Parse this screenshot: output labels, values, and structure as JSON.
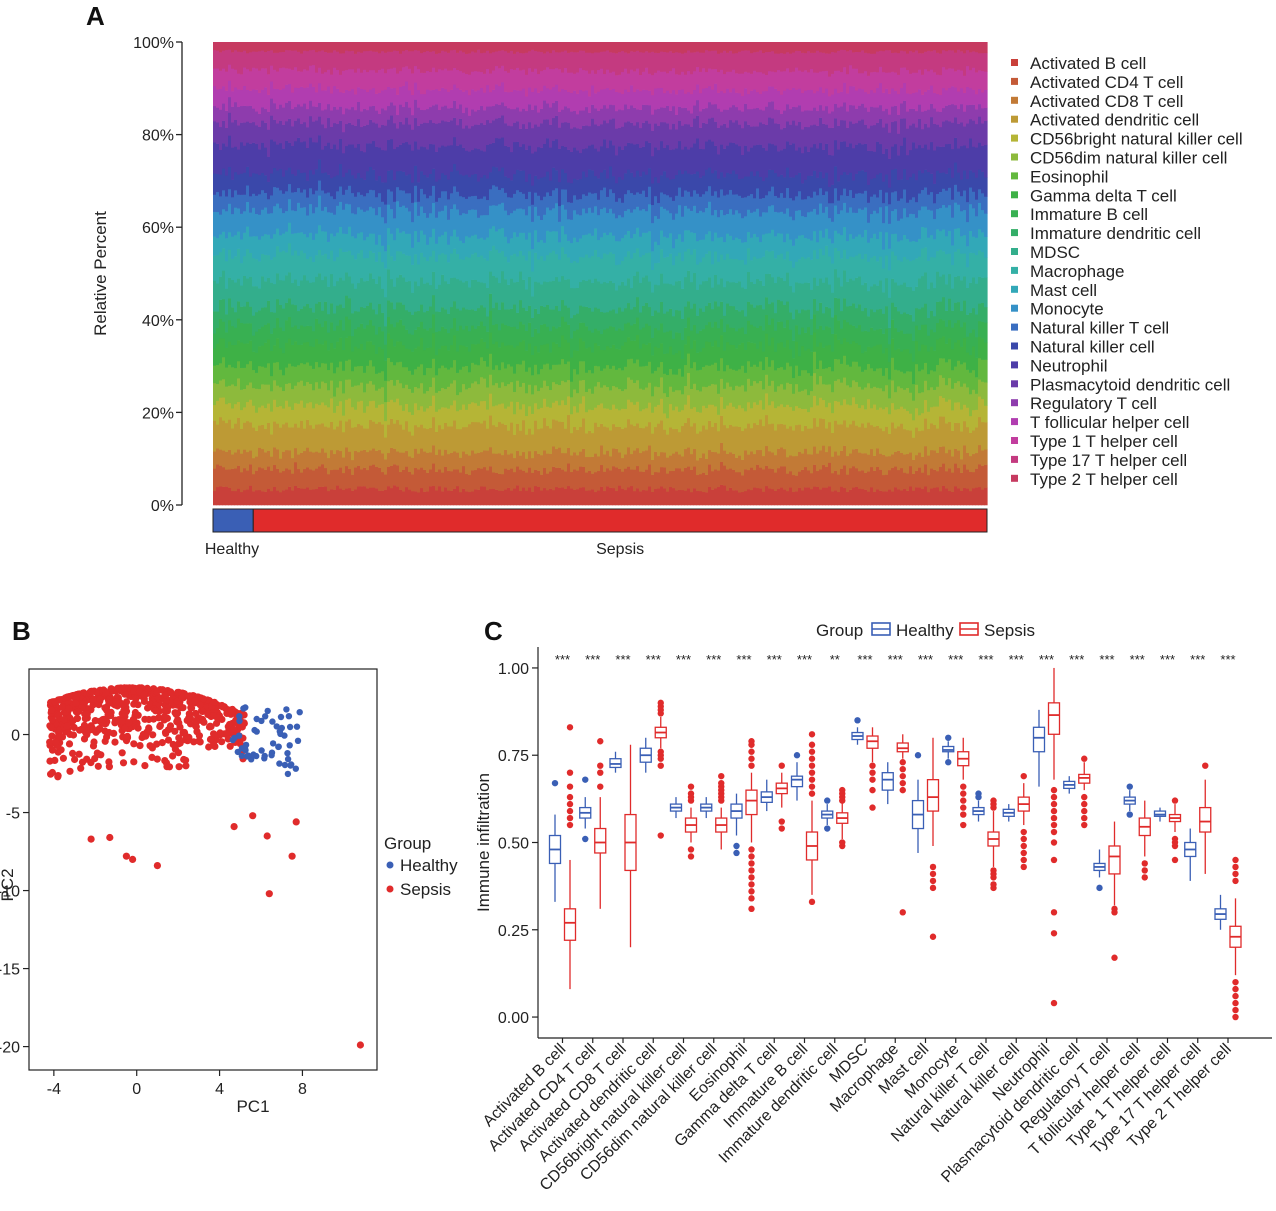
{
  "panels": {
    "a": {
      "letter": "A"
    },
    "b": {
      "letter": "B"
    },
    "c": {
      "letter": "C"
    }
  },
  "colors": {
    "healthy": "#3A5FB5",
    "sepsis": "#E02B2B"
  },
  "chart_data": [
    {
      "id": "A",
      "type": "area",
      "subtype": "100% stacked bar per sample",
      "ylabel": "Relative Percent",
      "yticks": [
        "0%",
        "20%",
        "40%",
        "60%",
        "80%",
        "100%"
      ],
      "ylim": [
        0,
        100
      ],
      "groups": [
        {
          "name": "Healthy",
          "fraction_of_samples": 0.052
        },
        {
          "name": "Sepsis",
          "fraction_of_samples": 0.948
        }
      ],
      "legend_position": "right",
      "cell_types": [
        {
          "name": "Activated B cell",
          "color": "#C9403A",
          "mean_pct": 2.9
        },
        {
          "name": "Activated CD4 T cell",
          "color": "#C45A37",
          "mean_pct": 3.5
        },
        {
          "name": "Activated CD8 T cell",
          "color": "#C27A36",
          "mean_pct": 3.0
        },
        {
          "name": "Activated dendritic cell",
          "color": "#BD9A35",
          "mean_pct": 4.8
        },
        {
          "name": "CD56bright natural killer cell",
          "color": "#B5B536",
          "mean_pct": 3.5
        },
        {
          "name": "CD56dim natural killer cell",
          "color": "#8DBA3C",
          "mean_pct": 3.5
        },
        {
          "name": "Eosinophil",
          "color": "#62B83E",
          "mean_pct": 3.4
        },
        {
          "name": "Gamma delta T cell",
          "color": "#3EB146",
          "mean_pct": 3.8
        },
        {
          "name": "Immature  B cell",
          "color": "#38B052",
          "mean_pct": 3.3
        },
        {
          "name": "Immature dendritic cell",
          "color": "#34AE68",
          "mean_pct": 3.4
        },
        {
          "name": "MDSC",
          "color": "#33AE8C",
          "mean_pct": 4.7
        },
        {
          "name": "Macrophage",
          "color": "#34B0A6",
          "mean_pct": 4.5
        },
        {
          "name": "Mast cell",
          "color": "#32A8B8",
          "mean_pct": 3.6
        },
        {
          "name": "Monocyte",
          "color": "#3591C7",
          "mean_pct": 4.4
        },
        {
          "name": "Natural killer T cell",
          "color": "#3A6EC0",
          "mean_pct": 3.0
        },
        {
          "name": "Natural killer cell",
          "color": "#3A48AA",
          "mean_pct": 3.5
        },
        {
          "name": "Neutrophil",
          "color": "#4D3DA8",
          "mean_pct": 5.1
        },
        {
          "name": "Plasmacytoid dendritic cell",
          "color": "#6B3BA9",
          "mean_pct": 4.0
        },
        {
          "name": "Regulatory T cell",
          "color": "#8E3CAD",
          "mean_pct": 2.8
        },
        {
          "name": "T follicular helper cell",
          "color": "#B13DB0",
          "mean_pct": 3.2
        },
        {
          "name": "Type 1 T helper cell",
          "color": "#C23D9E",
          "mean_pct": 3.4
        },
        {
          "name": "Type 17 T helper cell",
          "color": "#C43A80",
          "mean_pct": 3.4
        },
        {
          "name": "Type 2 T helper cell",
          "color": "#C63A60",
          "mean_pct": 1.7
        }
      ]
    },
    {
      "id": "B",
      "type": "scatter",
      "xlabel": "PC1",
      "ylabel": "PC2",
      "xlim": [
        -5.2,
        11.6
      ],
      "ylim": [
        -21.5,
        4.2
      ],
      "xticks": [
        -4,
        0,
        4,
        8
      ],
      "yticks": [
        0,
        -5,
        -10,
        -15,
        -20
      ],
      "legend_title": "Group",
      "legend_position": "right",
      "series": [
        {
          "name": "Healthy",
          "n_points": 55,
          "x_mean": 6.0,
          "y_mean": -0.9
        },
        {
          "name": "Sepsis",
          "n_points": 620,
          "x_mean": 0.0,
          "y_mean": -0.8
        }
      ],
      "outliers": [
        {
          "group": "Sepsis",
          "x": 10.8,
          "y": -19.9
        },
        {
          "group": "Sepsis",
          "x": 6.4,
          "y": -10.2
        },
        {
          "group": "Sepsis",
          "x": 7.5,
          "y": -7.8
        },
        {
          "group": "Sepsis",
          "x": 7.7,
          "y": -5.6
        },
        {
          "group": "Sepsis",
          "x": 6.3,
          "y": -6.5
        },
        {
          "group": "Sepsis",
          "x": 5.6,
          "y": -5.2
        },
        {
          "group": "Sepsis",
          "x": 4.7,
          "y": -5.9
        },
        {
          "group": "Sepsis",
          "x": 1.0,
          "y": -8.4
        },
        {
          "group": "Sepsis",
          "x": -0.2,
          "y": -8.0
        },
        {
          "group": "Sepsis",
          "x": -0.5,
          "y": -7.8
        },
        {
          "group": "Sepsis",
          "x": -1.3,
          "y": -6.6
        },
        {
          "group": "Sepsis",
          "x": -2.2,
          "y": -6.7
        }
      ]
    },
    {
      "id": "C",
      "type": "box",
      "ylabel": "Immune infiltration",
      "ylim": [
        -0.06,
        1.06
      ],
      "yticks": [
        "0.00",
        "0.25",
        "0.50",
        "0.75",
        "1.00"
      ],
      "legend_title": "Group",
      "legend_entries": [
        "Healthy",
        "Sepsis"
      ],
      "legend_position": "top",
      "categories": [
        {
          "name": "Activated B cell",
          "sig": "***",
          "healthy": {
            "q1": 0.44,
            "med": 0.48,
            "q3": 0.52,
            "lo": 0.33,
            "hi": 0.58,
            "out": [
              0.67
            ]
          },
          "sepsis": {
            "q1": 0.22,
            "med": 0.27,
            "q3": 0.31,
            "lo": 0.08,
            "hi": 0.45,
            "out": [
              0.55,
              0.57,
              0.59,
              0.61,
              0.63,
              0.66,
              0.7,
              0.83
            ]
          }
        },
        {
          "name": "Activated CD4 T cell",
          "sig": "***",
          "healthy": {
            "q1": 0.57,
            "med": 0.585,
            "q3": 0.6,
            "lo": 0.54,
            "hi": 0.63,
            "out": [
              0.51,
              0.68
            ]
          },
          "sepsis": {
            "q1": 0.47,
            "med": 0.5,
            "q3": 0.54,
            "lo": 0.31,
            "hi": 0.63,
            "out": [
              0.66,
              0.7,
              0.72,
              0.79
            ]
          }
        },
        {
          "name": "Activated CD8 T cell",
          "sig": "***",
          "healthy": {
            "q1": 0.715,
            "med": 0.725,
            "q3": 0.74,
            "lo": 0.7,
            "hi": 0.76,
            "out": []
          },
          "sepsis": {
            "q1": 0.42,
            "med": 0.5,
            "q3": 0.58,
            "lo": 0.2,
            "hi": 0.78,
            "out": []
          }
        },
        {
          "name": "Activated dendritic cell",
          "sig": "***",
          "healthy": {
            "q1": 0.73,
            "med": 0.75,
            "q3": 0.77,
            "lo": 0.7,
            "hi": 0.8,
            "out": []
          },
          "sepsis": {
            "q1": 0.8,
            "med": 0.815,
            "q3": 0.83,
            "lo": 0.77,
            "hi": 0.86,
            "out": [
              0.52,
              0.72,
              0.74,
              0.75,
              0.76,
              0.87,
              0.88,
              0.89,
              0.9
            ]
          }
        },
        {
          "name": "CD56bright natural killer cell",
          "sig": "***",
          "healthy": {
            "q1": 0.59,
            "med": 0.6,
            "q3": 0.61,
            "lo": 0.57,
            "hi": 0.63,
            "out": []
          },
          "sepsis": {
            "q1": 0.53,
            "med": 0.55,
            "q3": 0.57,
            "lo": 0.5,
            "hi": 0.6,
            "out": [
              0.46,
              0.48,
              0.62,
              0.63,
              0.64,
              0.66
            ]
          }
        },
        {
          "name": "CD56dim natural killer cell",
          "sig": "***",
          "healthy": {
            "q1": 0.59,
            "med": 0.6,
            "q3": 0.61,
            "lo": 0.57,
            "hi": 0.63,
            "out": []
          },
          "sepsis": {
            "q1": 0.53,
            "med": 0.55,
            "q3": 0.57,
            "lo": 0.48,
            "hi": 0.6,
            "out": [
              0.62,
              0.63,
              0.64,
              0.65,
              0.66,
              0.67,
              0.69
            ]
          }
        },
        {
          "name": "Eosinophil",
          "sig": "***",
          "healthy": {
            "q1": 0.57,
            "med": 0.59,
            "q3": 0.61,
            "lo": 0.52,
            "hi": 0.64,
            "out": [
              0.47,
              0.49
            ]
          },
          "sepsis": {
            "q1": 0.58,
            "med": 0.62,
            "q3": 0.65,
            "lo": 0.5,
            "hi": 0.7,
            "out": [
              0.31,
              0.34,
              0.36,
              0.38,
              0.4,
              0.42,
              0.44,
              0.46,
              0.48,
              0.72,
              0.74,
              0.76,
              0.78,
              0.79
            ]
          }
        },
        {
          "name": "Gamma delta T cell",
          "sig": "***",
          "healthy": {
            "q1": 0.615,
            "med": 0.63,
            "q3": 0.645,
            "lo": 0.59,
            "hi": 0.68,
            "out": []
          },
          "sepsis": {
            "q1": 0.64,
            "med": 0.655,
            "q3": 0.67,
            "lo": 0.6,
            "hi": 0.7,
            "out": [
              0.54,
              0.56,
              0.72
            ]
          }
        },
        {
          "name": "Immature  B cell",
          "sig": "***",
          "healthy": {
            "q1": 0.66,
            "med": 0.68,
            "q3": 0.69,
            "lo": 0.62,
            "hi": 0.73,
            "out": [
              0.75
            ]
          },
          "sepsis": {
            "q1": 0.45,
            "med": 0.49,
            "q3": 0.53,
            "lo": 0.35,
            "hi": 0.62,
            "out": [
              0.33,
              0.64,
              0.66,
              0.68,
              0.7,
              0.72,
              0.74,
              0.76,
              0.78,
              0.81
            ]
          }
        },
        {
          "name": "Immature dendritic cell",
          "sig": "**",
          "healthy": {
            "q1": 0.57,
            "med": 0.58,
            "q3": 0.59,
            "lo": 0.55,
            "hi": 0.61,
            "out": [
              0.54,
              0.62
            ]
          },
          "sepsis": {
            "q1": 0.555,
            "med": 0.57,
            "q3": 0.585,
            "lo": 0.51,
            "hi": 0.62,
            "out": [
              0.49,
              0.5,
              0.62,
              0.63,
              0.64,
              0.65
            ]
          }
        },
        {
          "name": "MDSC",
          "sig": "***",
          "healthy": {
            "q1": 0.795,
            "med": 0.805,
            "q3": 0.815,
            "lo": 0.78,
            "hi": 0.83,
            "out": [
              0.85
            ]
          },
          "sepsis": {
            "q1": 0.77,
            "med": 0.79,
            "q3": 0.805,
            "lo": 0.73,
            "hi": 0.83,
            "out": [
              0.6,
              0.65,
              0.68,
              0.7,
              0.72
            ]
          }
        },
        {
          "name": "Macrophage",
          "sig": "***",
          "healthy": {
            "q1": 0.65,
            "med": 0.68,
            "q3": 0.7,
            "lo": 0.61,
            "hi": 0.73,
            "out": []
          },
          "sepsis": {
            "q1": 0.76,
            "med": 0.77,
            "q3": 0.785,
            "lo": 0.74,
            "hi": 0.81,
            "out": [
              0.3,
              0.65,
              0.67,
              0.69,
              0.71,
              0.73
            ]
          }
        },
        {
          "name": "Mast cell",
          "sig": "***",
          "healthy": {
            "q1": 0.54,
            "med": 0.58,
            "q3": 0.62,
            "lo": 0.47,
            "hi": 0.68,
            "out": [
              0.75
            ]
          },
          "sepsis": {
            "q1": 0.59,
            "med": 0.63,
            "q3": 0.68,
            "lo": 0.49,
            "hi": 0.8,
            "out": [
              0.23,
              0.37,
              0.39,
              0.41,
              0.43
            ]
          }
        },
        {
          "name": "Monocyte",
          "sig": "***",
          "healthy": {
            "q1": 0.76,
            "med": 0.765,
            "q3": 0.775,
            "lo": 0.74,
            "hi": 0.79,
            "out": [
              0.73,
              0.8
            ]
          },
          "sepsis": {
            "q1": 0.72,
            "med": 0.74,
            "q3": 0.76,
            "lo": 0.68,
            "hi": 0.8,
            "out": [
              0.55,
              0.58,
              0.6,
              0.62,
              0.64,
              0.66
            ]
          }
        },
        {
          "name": "Natural killer T cell",
          "sig": "***",
          "healthy": {
            "q1": 0.58,
            "med": 0.59,
            "q3": 0.6,
            "lo": 0.56,
            "hi": 0.62,
            "out": [
              0.63,
              0.64
            ]
          },
          "sepsis": {
            "q1": 0.49,
            "med": 0.51,
            "q3": 0.53,
            "lo": 0.43,
            "hi": 0.59,
            "out": [
              0.37,
              0.38,
              0.4,
              0.41,
              0.42,
              0.6,
              0.61,
              0.62
            ]
          }
        },
        {
          "name": "Natural killer cell",
          "sig": "***",
          "healthy": {
            "q1": 0.575,
            "med": 0.585,
            "q3": 0.595,
            "lo": 0.56,
            "hi": 0.61,
            "out": []
          },
          "sepsis": {
            "q1": 0.59,
            "med": 0.61,
            "q3": 0.63,
            "lo": 0.55,
            "hi": 0.67,
            "out": [
              0.43,
              0.45,
              0.47,
              0.49,
              0.51,
              0.53,
              0.69
            ]
          }
        },
        {
          "name": "Neutrophil",
          "sig": "***",
          "healthy": {
            "q1": 0.76,
            "med": 0.8,
            "q3": 0.83,
            "lo": 0.66,
            "hi": 0.88,
            "out": []
          },
          "sepsis": {
            "q1": 0.81,
            "med": 0.865,
            "q3": 0.9,
            "lo": 0.68,
            "hi": 1.0,
            "out": [
              0.04,
              0.24,
              0.3,
              0.45,
              0.5,
              0.53,
              0.55,
              0.57,
              0.59,
              0.61,
              0.63,
              0.65
            ]
          }
        },
        {
          "name": "Plasmacytoid dendritic cell",
          "sig": "***",
          "healthy": {
            "q1": 0.655,
            "med": 0.665,
            "q3": 0.675,
            "lo": 0.64,
            "hi": 0.69,
            "out": []
          },
          "sepsis": {
            "q1": 0.67,
            "med": 0.685,
            "q3": 0.695,
            "lo": 0.65,
            "hi": 0.73,
            "out": [
              0.55,
              0.57,
              0.59,
              0.61,
              0.63,
              0.74
            ]
          }
        },
        {
          "name": "Regulatory T cell",
          "sig": "***",
          "healthy": {
            "q1": 0.42,
            "med": 0.43,
            "q3": 0.44,
            "lo": 0.4,
            "hi": 0.48,
            "out": [
              0.37
            ]
          },
          "sepsis": {
            "q1": 0.41,
            "med": 0.46,
            "q3": 0.49,
            "lo": 0.32,
            "hi": 0.56,
            "out": [
              0.17,
              0.3,
              0.31
            ]
          }
        },
        {
          "name": "T follicular helper cell",
          "sig": "***",
          "healthy": {
            "q1": 0.61,
            "med": 0.62,
            "q3": 0.63,
            "lo": 0.59,
            "hi": 0.65,
            "out": [
              0.58,
              0.66
            ]
          },
          "sepsis": {
            "q1": 0.52,
            "med": 0.545,
            "q3": 0.57,
            "lo": 0.46,
            "hi": 0.62,
            "out": [
              0.4,
              0.42,
              0.44
            ]
          }
        },
        {
          "name": "Type 1 T helper cell",
          "sig": "***",
          "healthy": {
            "q1": 0.575,
            "med": 0.58,
            "q3": 0.59,
            "lo": 0.56,
            "hi": 0.6,
            "out": []
          },
          "sepsis": {
            "q1": 0.56,
            "med": 0.57,
            "q3": 0.58,
            "lo": 0.53,
            "hi": 0.61,
            "out": [
              0.45,
              0.49,
              0.5,
              0.51,
              0.62
            ]
          }
        },
        {
          "name": "Type 17 T helper cell",
          "sig": "***",
          "healthy": {
            "q1": 0.46,
            "med": 0.48,
            "q3": 0.5,
            "lo": 0.39,
            "hi": 0.54,
            "out": []
          },
          "sepsis": {
            "q1": 0.53,
            "med": 0.56,
            "q3": 0.6,
            "lo": 0.41,
            "hi": 0.68,
            "out": [
              0.72
            ]
          }
        },
        {
          "name": "Type 2 T helper cell",
          "sig": "***",
          "healthy": {
            "q1": 0.28,
            "med": 0.295,
            "q3": 0.31,
            "lo": 0.25,
            "hi": 0.35,
            "out": []
          },
          "sepsis": {
            "q1": 0.2,
            "med": 0.23,
            "q3": 0.26,
            "lo": 0.12,
            "hi": 0.34,
            "out": [
              0.0,
              0.02,
              0.04,
              0.06,
              0.08,
              0.1,
              0.39,
              0.41,
              0.43,
              0.45
            ]
          }
        }
      ]
    }
  ]
}
